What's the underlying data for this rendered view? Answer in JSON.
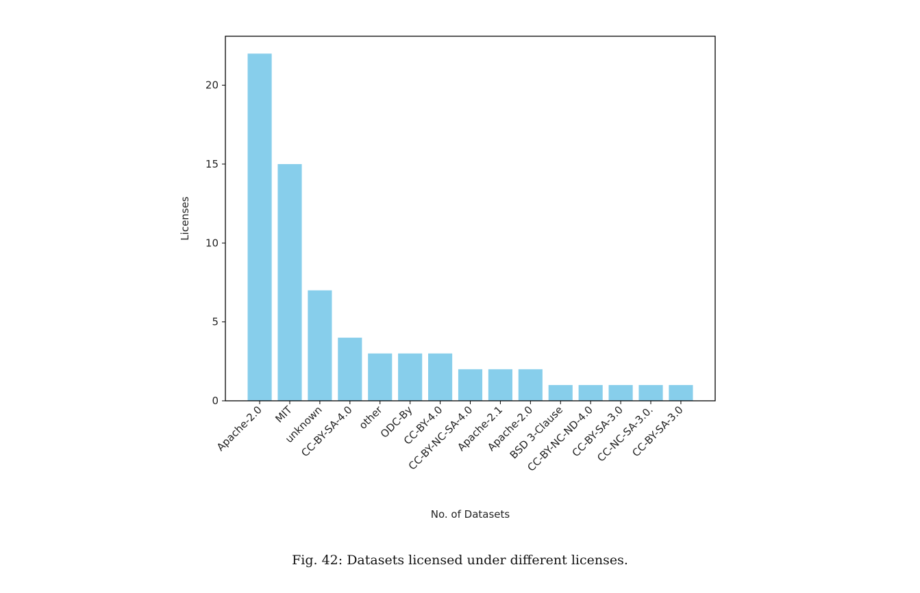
{
  "caption": "Fig. 42: Datasets licensed under different licenses.",
  "chart_data": {
    "type": "bar",
    "xlabel": "No. of Datasets",
    "ylabel": "Licenses",
    "categories": [
      "Apache-2.0",
      "MIT",
      "unknown",
      "CC-BY-SA-4.0",
      "other",
      "ODC-By",
      "CC-BY-4.0",
      "CC-BY-NC-SA-4.0",
      "Apache-2.1",
      "Apache-2.0",
      "BSD 3-Clause",
      "CC-BY-NC-ND-4.0",
      "CC-BY-SA-3.0",
      "CC-NC-SA-3.0.",
      "CC-BY-SA-3.0"
    ],
    "values": [
      22,
      15,
      7,
      4,
      3,
      3,
      3,
      2,
      2,
      2,
      1,
      1,
      1,
      1,
      1
    ],
    "yticks": [
      0,
      5,
      10,
      15,
      20
    ],
    "ylim": [
      0,
      23.1
    ],
    "bar_color": "#87ceeb",
    "grid": false,
    "legend": "none"
  }
}
